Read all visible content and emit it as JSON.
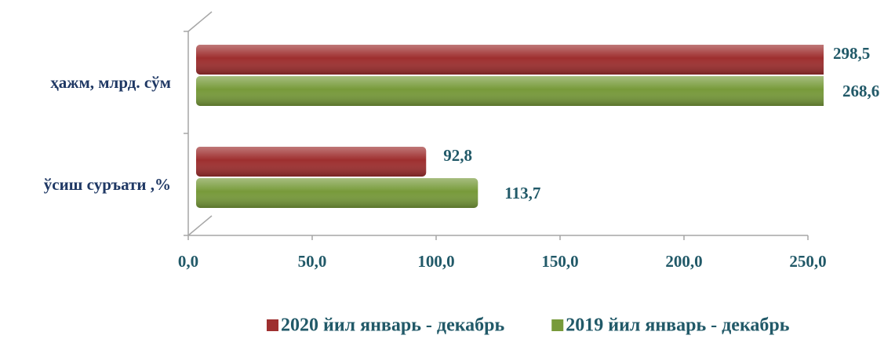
{
  "chart_data": {
    "type": "hbar",
    "categories": [
      "ҳажм, млрд. сўм",
      "ўсиш суръати ,%"
    ],
    "series": [
      {
        "name": "2020 йил январь - декабрь",
        "color": "#9e2f2f",
        "values": [
          298.5,
          92.8
        ],
        "value_labels": [
          "298,5",
          "92,8"
        ]
      },
      {
        "name": "2019 йил январь - декабрь",
        "color": "#779a3a",
        "values": [
          268.6,
          113.7
        ],
        "value_labels": [
          "268,6",
          "113,7"
        ]
      }
    ],
    "xlim": [
      0,
      250
    ],
    "xticks": [
      {
        "value": 0,
        "label": "0,0"
      },
      {
        "value": 50,
        "label": "50,0"
      },
      {
        "value": 100,
        "label": "100,0"
      },
      {
        "value": 150,
        "label": "150,0"
      },
      {
        "value": 200,
        "label": "200,0"
      },
      {
        "value": 250,
        "label": "250,0"
      }
    ],
    "legend": "bottom"
  }
}
